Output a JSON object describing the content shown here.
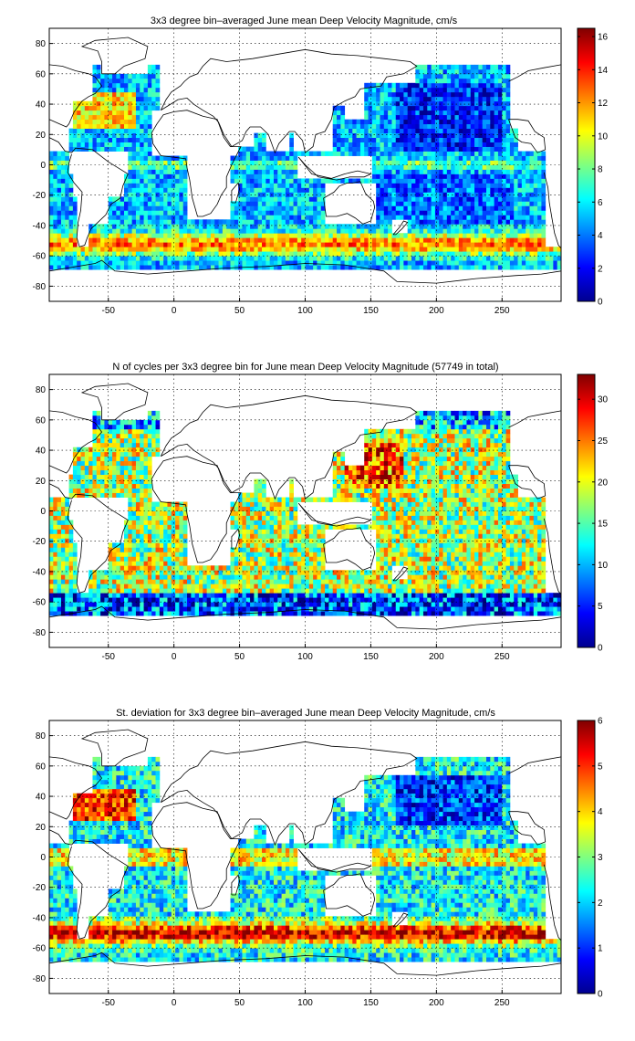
{
  "chart_data": [
    {
      "type": "heatmap",
      "title": "3x3 degree bin–averaged June mean Deep Velocity Magnitude, cm/s",
      "xlabel": "",
      "ylabel": "",
      "xlim": [
        -95,
        295
      ],
      "ylim": [
        -90,
        90
      ],
      "x_ticks": [
        -50,
        0,
        50,
        100,
        150,
        200,
        250
      ],
      "y_ticks": [
        -80,
        -60,
        -40,
        -20,
        0,
        20,
        40,
        60,
        80
      ],
      "grid": true,
      "colormap": "jet",
      "colorbar": {
        "min": 0,
        "max": 16.5,
        "ticks": [
          0,
          2,
          4,
          6,
          8,
          10,
          12,
          14,
          16
        ]
      },
      "field_seed": 11
    },
    {
      "type": "heatmap",
      "title": "N of cycles per 3x3 degree bin for June mean Deep Velocity Magnitude (57749 in total)",
      "xlabel": "",
      "ylabel": "",
      "xlim": [
        -95,
        295
      ],
      "ylim": [
        -90,
        90
      ],
      "x_ticks": [
        -50,
        0,
        50,
        100,
        150,
        200,
        250
      ],
      "y_ticks": [
        -80,
        -60,
        -40,
        -20,
        0,
        20,
        40,
        60,
        80
      ],
      "grid": true,
      "colormap": "jet",
      "colorbar": {
        "min": 0,
        "max": 33,
        "ticks": [
          0,
          5,
          10,
          15,
          20,
          25,
          30
        ]
      },
      "field_seed": 23
    },
    {
      "type": "heatmap",
      "title": "St. deviation for 3x3 degree bin–averaged June mean Deep Velocity Magnitude, cm/s",
      "xlabel": "",
      "ylabel": "",
      "xlim": [
        -95,
        295
      ],
      "ylim": [
        -90,
        90
      ],
      "x_ticks": [
        -50,
        0,
        50,
        100,
        150,
        200,
        250
      ],
      "y_ticks": [
        -80,
        -60,
        -40,
        -20,
        0,
        20,
        40,
        60,
        80
      ],
      "grid": true,
      "colormap": "jet",
      "colorbar": {
        "min": 0,
        "max": 6,
        "ticks": [
          0,
          1,
          2,
          3,
          4,
          5,
          6
        ]
      },
      "field_seed": 37
    }
  ]
}
